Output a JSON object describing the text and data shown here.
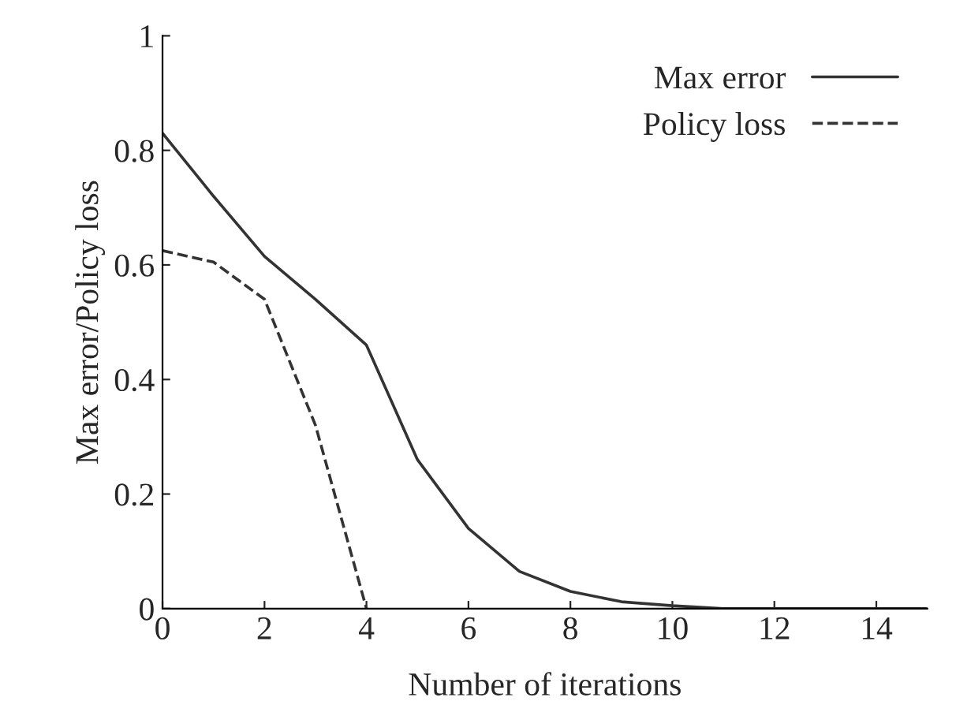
{
  "chart_data": {
    "type": "line",
    "xlabel": "Number of iterations",
    "ylabel": "Max error/Policy loss",
    "series": [
      {
        "name": "Max error",
        "color": "#333333",
        "line_style": "solid",
        "x": [
          0,
          1,
          2,
          3,
          4,
          5,
          6,
          7,
          8,
          9,
          10,
          11,
          12,
          13,
          14,
          15
        ],
        "values": [
          0.83,
          0.72,
          0.615,
          0.54,
          0.46,
          0.26,
          0.14,
          0.065,
          0.03,
          0.012,
          0.005,
          0,
          0,
          0,
          0,
          0
        ]
      },
      {
        "name": "Policy loss",
        "color": "#333333",
        "line_style": "dashed",
        "x": [
          0,
          1,
          2,
          3,
          4
        ],
        "values": [
          0.625,
          0.605,
          0.54,
          0.32,
          0
        ]
      }
    ],
    "xlim": [
      0,
      15
    ],
    "xticks": [
      0,
      2,
      4,
      6,
      8,
      10,
      12,
      14
    ],
    "ylim": [
      0,
      1
    ],
    "yticks": [
      0,
      0.2,
      0.4,
      0.6,
      0.8,
      1
    ],
    "legend": "top right",
    "grid": false,
    "marker": "none"
  }
}
